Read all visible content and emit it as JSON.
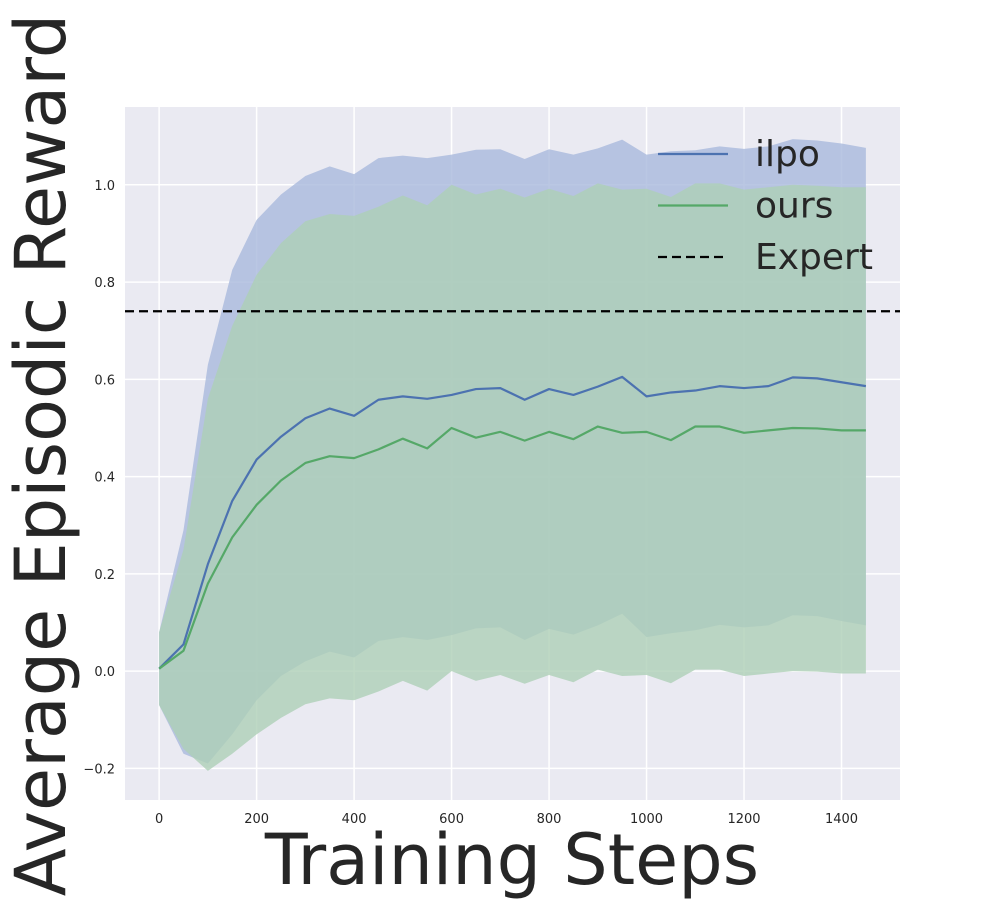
{
  "chart_data": {
    "type": "line",
    "xlabel": "Training Steps",
    "ylabel": "Average Episodic Reward",
    "xlim": [
      -70,
      1520
    ],
    "ylim": [
      -0.265,
      1.16
    ],
    "xticks": [
      0,
      200,
      400,
      600,
      800,
      1000,
      1200,
      1400
    ],
    "yticks": [
      -0.2,
      0.0,
      0.2,
      0.4,
      0.6,
      0.8,
      1.0
    ],
    "xtick_labels": [
      "0",
      "200",
      "400",
      "600",
      "800",
      "1000",
      "1200",
      "1400"
    ],
    "ytick_labels": [
      "−0.2",
      "0.0",
      "0.2",
      "0.4",
      "0.6",
      "0.8",
      "1.0"
    ],
    "grid": true,
    "legend_position": "top-right",
    "x": [
      0,
      50,
      100,
      150,
      200,
      250,
      300,
      350,
      400,
      450,
      500,
      550,
      600,
      650,
      700,
      750,
      800,
      850,
      900,
      950,
      1000,
      1050,
      1100,
      1150,
      1200,
      1250,
      1300,
      1350,
      1400,
      1450
    ],
    "series": [
      {
        "name": "ilpo",
        "color": "#4c72b0",
        "band_color": "#a9b9dc",
        "values": [
          0.005,
          0.055,
          0.22,
          0.35,
          0.435,
          0.482,
          0.52,
          0.54,
          0.525,
          0.558,
          0.565,
          0.56,
          0.568,
          0.58,
          0.582,
          0.558,
          0.58,
          0.568,
          0.585,
          0.605,
          0.565,
          0.573,
          0.577,
          0.586,
          0.582,
          0.586,
          0.604,
          0.602,
          0.594,
          0.586
        ],
        "upper": [
          0.08,
          0.29,
          0.63,
          0.825,
          0.928,
          0.98,
          1.018,
          1.038,
          1.022,
          1.055,
          1.06,
          1.055,
          1.062,
          1.072,
          1.073,
          1.053,
          1.073,
          1.062,
          1.075,
          1.093,
          1.062,
          1.069,
          1.071,
          1.079,
          1.074,
          1.079,
          1.094,
          1.091,
          1.085,
          1.076
        ],
        "lower": [
          -0.07,
          -0.17,
          -0.19,
          -0.13,
          -0.06,
          -0.01,
          0.02,
          0.04,
          0.028,
          0.062,
          0.07,
          0.064,
          0.074,
          0.088,
          0.09,
          0.064,
          0.087,
          0.075,
          0.094,
          0.118,
          0.07,
          0.078,
          0.084,
          0.095,
          0.09,
          0.094,
          0.115,
          0.113,
          0.103,
          0.094
        ]
      },
      {
        "name": "ours",
        "color": "#55a868",
        "band_color": "#aed0b6",
        "values": [
          0.005,
          0.042,
          0.18,
          0.275,
          0.342,
          0.392,
          0.428,
          0.442,
          0.438,
          0.456,
          0.478,
          0.458,
          0.5,
          0.48,
          0.492,
          0.474,
          0.492,
          0.477,
          0.503,
          0.49,
          0.492,
          0.475,
          0.503,
          0.503,
          0.49,
          0.495,
          0.5,
          0.499,
          0.495,
          0.495
        ],
        "upper": [
          0.08,
          0.25,
          0.56,
          0.71,
          0.815,
          0.88,
          0.925,
          0.94,
          0.936,
          0.955,
          0.978,
          0.958,
          1.0,
          0.98,
          0.992,
          0.974,
          0.992,
          0.977,
          1.003,
          0.99,
          0.992,
          0.975,
          1.003,
          1.003,
          0.99,
          0.995,
          1.0,
          0.998,
          0.995,
          0.995
        ],
        "lower": [
          -0.07,
          -0.16,
          -0.205,
          -0.17,
          -0.13,
          -0.096,
          -0.068,
          -0.056,
          -0.06,
          -0.042,
          -0.02,
          -0.04,
          0.0,
          -0.02,
          -0.008,
          -0.026,
          -0.008,
          -0.023,
          0.003,
          -0.01,
          -0.008,
          -0.025,
          0.003,
          0.003,
          -0.01,
          -0.005,
          0.0,
          -0.001,
          -0.005,
          -0.005
        ]
      }
    ],
    "reference_lines": [
      {
        "name": "Expert",
        "y": 0.74,
        "color": "#000000",
        "style": "dashed"
      }
    ]
  },
  "style": {
    "plot_background": "#eaeaf2",
    "grid_color": "#ffffff",
    "text_color": "#262626"
  }
}
